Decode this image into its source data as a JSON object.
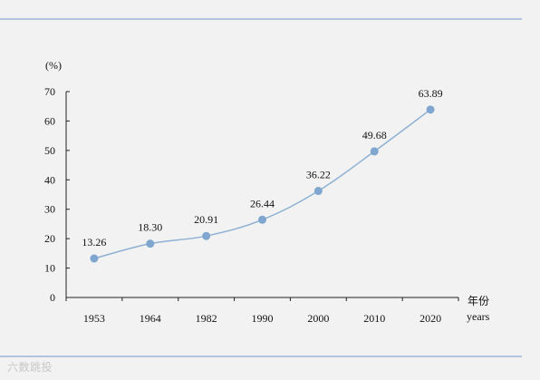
{
  "chart_data": {
    "type": "line",
    "unit": "(%)",
    "xlabel_cn": "年份",
    "xlabel_en": "years",
    "categories": [
      "1953",
      "1964",
      "1982",
      "1990",
      "2000",
      "2010",
      "2020"
    ],
    "values": [
      13.26,
      18.3,
      20.91,
      26.44,
      36.22,
      49.68,
      63.89
    ],
    "value_labels": [
      "13.26",
      "18.30",
      "20.91",
      "26.44",
      "36.22",
      "49.68",
      "63.89"
    ],
    "yticks": [
      "0",
      "10",
      "20",
      "30",
      "40",
      "50",
      "60",
      "70"
    ],
    "ylim": [
      0,
      70
    ],
    "grid": false,
    "colors": {
      "line": "#8eb1d3",
      "marker": "#7ea6cf",
      "axis": "#222222",
      "rule": "#9bb8d8"
    }
  },
  "watermark": "六数跳投"
}
